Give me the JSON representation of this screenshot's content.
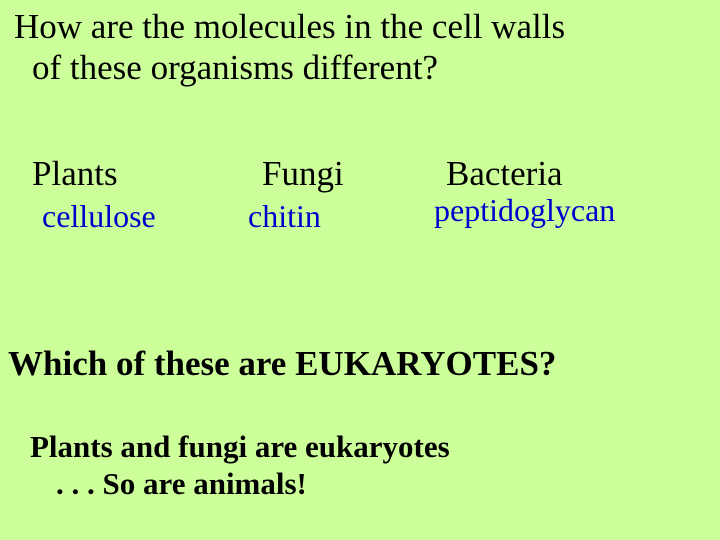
{
  "background_color": "#ccff99",
  "text_color_black": "#000000",
  "text_color_blue": "#0000cc",
  "font_family": "Times New Roman",
  "question1": {
    "line1": "How are the molecules in the cell walls",
    "line2": "of these organisms different?",
    "fontsize": 35,
    "fontweight": "normal"
  },
  "organisms": {
    "head_fontsize": 35,
    "answer_fontsize": 32,
    "plants": {
      "heading": "Plants",
      "answer": "cellulose"
    },
    "fungi": {
      "heading": "Fungi",
      "answer": "chitin"
    },
    "bacteria": {
      "heading": "Bacteria",
      "answer": "peptidoglycan"
    }
  },
  "question2": {
    "text": "Which of these are EUKARYOTES?",
    "fontsize": 35,
    "fontweight": "bold"
  },
  "answer2": {
    "line1": "Plants and fungi are eukaryotes",
    "line2": ". . . So are animals!",
    "fontsize": 31,
    "fontweight": "bold"
  }
}
